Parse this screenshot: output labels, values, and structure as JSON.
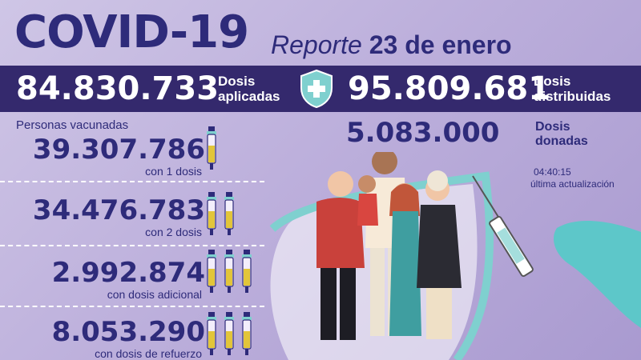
{
  "header": {
    "title": "COVID-19",
    "report_word": "Reporte",
    "report_date": "23 de enero"
  },
  "band": {
    "applied_value": "84.830.733",
    "applied_label_1": "Dosis",
    "applied_label_2": "aplicadas",
    "distributed_value": "95.809.681",
    "distributed_label_1": "Dosis",
    "distributed_label_2": "distribuidas"
  },
  "people": {
    "title": "Personas vacunadas",
    "stats": [
      {
        "value": "39.307.786",
        "label": "con 1 dosis",
        "vials": 1
      },
      {
        "value": "34.476.783",
        "label": "con 2 dosis",
        "vials": 2
      },
      {
        "value": "2.992.874",
        "label": "con dosis adicional",
        "vials": 3
      },
      {
        "value": "8.053.290",
        "label": "con dosis de refuerzo",
        "vials": 3
      }
    ]
  },
  "donated": {
    "value": "5.083.000",
    "label_1": "Dosis",
    "label_2": "donadas"
  },
  "update": {
    "time": "04:40:15",
    "label": "última actualización"
  },
  "colors": {
    "navy": "#2e2b7a",
    "band": "#34296d",
    "teal": "#7fd0cf",
    "vial_liquid": "#e2c53a"
  }
}
